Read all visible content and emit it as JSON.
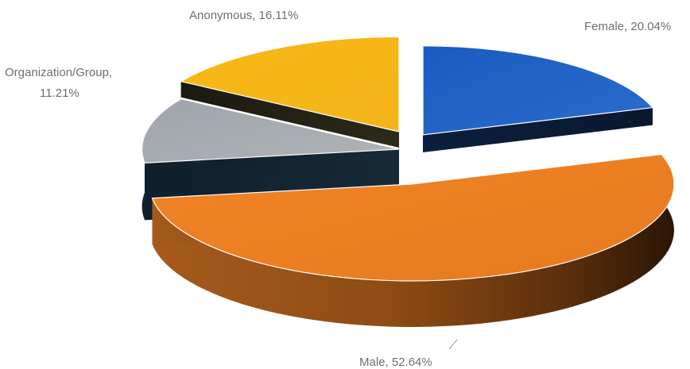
{
  "chart_data": {
    "type": "pie",
    "title": "",
    "three_d": true,
    "exploded": true,
    "slices": [
      {
        "name": "Female",
        "value": 20.04,
        "label": "Female, 20.04%",
        "color": "#1f5fbf"
      },
      {
        "name": "Male",
        "value": 52.64,
        "label": "Male, 52.64%",
        "color": "#ee7f22"
      },
      {
        "name": "Organization/Group",
        "value": 11.21,
        "label_lines": [
          "Organization/Group,",
          "11.21%"
        ],
        "color": "#a3a8ad"
      },
      {
        "name": "Anonymous",
        "value": 16.11,
        "label": "Anonymous, 16.11%",
        "color": "#f9bb18"
      }
    ]
  }
}
